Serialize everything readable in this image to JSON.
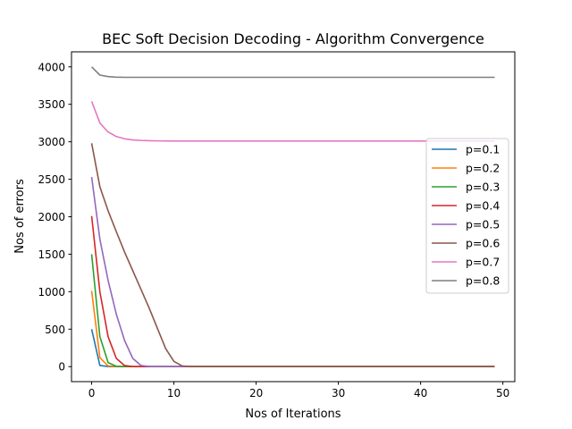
{
  "chart_data": {
    "type": "line",
    "title": "BEC Soft Decision Decoding - Algorithm Convergence",
    "xlabel": "Nos of Iterations",
    "ylabel": "Nos of errors",
    "xlim": [
      -2.45,
      51.45
    ],
    "ylim": [
      -200,
      4200
    ],
    "xticks": [
      0,
      10,
      20,
      30,
      40,
      50
    ],
    "yticks": [
      0,
      500,
      1000,
      1500,
      2000,
      2500,
      3000,
      3500,
      4000
    ],
    "grid": false,
    "legend_position": "center-right",
    "x": [
      0,
      1,
      2,
      3,
      4,
      5,
      6,
      7,
      8,
      9,
      10,
      11,
      12,
      13,
      14,
      15,
      16,
      17,
      18,
      19,
      20,
      21,
      22,
      23,
      24,
      25,
      26,
      27,
      28,
      29,
      30,
      31,
      32,
      33,
      34,
      35,
      36,
      37,
      38,
      39,
      40,
      41,
      42,
      43,
      44,
      45,
      46,
      47,
      48,
      49
    ],
    "series": [
      {
        "name": "p=0.1",
        "color": "#1f77b4",
        "values": [
          500,
          15,
          2,
          0,
          0,
          0,
          0,
          0,
          0,
          0,
          0,
          0,
          0,
          0,
          0,
          0,
          0,
          0,
          0,
          0,
          0,
          0,
          0,
          0,
          0,
          0,
          0,
          0,
          0,
          0,
          0,
          0,
          0,
          0,
          0,
          0,
          0,
          0,
          0,
          0,
          0,
          0,
          0,
          0,
          0,
          0,
          0,
          0,
          0,
          0
        ]
      },
      {
        "name": "p=0.2",
        "color": "#ff7f0e",
        "values": [
          1010,
          120,
          10,
          1,
          0,
          0,
          0,
          0,
          0,
          0,
          0,
          0,
          0,
          0,
          0,
          0,
          0,
          0,
          0,
          0,
          0,
          0,
          0,
          0,
          0,
          0,
          0,
          0,
          0,
          0,
          0,
          0,
          0,
          0,
          0,
          0,
          0,
          0,
          0,
          0,
          0,
          0,
          0,
          0,
          0,
          0,
          0,
          0,
          0,
          0
        ]
      },
      {
        "name": "p=0.3",
        "color": "#2ca02c",
        "values": [
          1500,
          400,
          55,
          5,
          0,
          0,
          0,
          0,
          0,
          0,
          0,
          0,
          0,
          0,
          0,
          0,
          0,
          0,
          0,
          0,
          0,
          0,
          0,
          0,
          0,
          0,
          0,
          0,
          0,
          0,
          0,
          0,
          0,
          0,
          0,
          0,
          0,
          0,
          0,
          0,
          0,
          0,
          0,
          0,
          0,
          0,
          0,
          0,
          0,
          0
        ]
      },
      {
        "name": "p=0.4",
        "color": "#d62728",
        "values": [
          2010,
          1000,
          400,
          110,
          15,
          1,
          0,
          0,
          0,
          0,
          0,
          0,
          0,
          0,
          0,
          0,
          0,
          0,
          0,
          0,
          0,
          0,
          0,
          0,
          0,
          0,
          0,
          0,
          0,
          0,
          0,
          0,
          0,
          0,
          0,
          0,
          0,
          0,
          0,
          0,
          0,
          0,
          0,
          0,
          0,
          0,
          0,
          0,
          0,
          0
        ]
      },
      {
        "name": "p=0.5",
        "color": "#9467bd",
        "values": [
          2530,
          1700,
          1150,
          700,
          350,
          110,
          15,
          1,
          0,
          0,
          0,
          0,
          0,
          0,
          0,
          0,
          0,
          0,
          0,
          0,
          0,
          0,
          0,
          0,
          0,
          0,
          0,
          0,
          0,
          0,
          0,
          0,
          0,
          0,
          0,
          0,
          0,
          0,
          0,
          0,
          0,
          0,
          0,
          0,
          0,
          0,
          0,
          0,
          0,
          0
        ]
      },
      {
        "name": "p=0.6",
        "color": "#8c564b",
        "values": [
          2980,
          2400,
          2080,
          1800,
          1530,
          1280,
          1030,
          780,
          510,
          240,
          70,
          10,
          1,
          0,
          0,
          0,
          0,
          0,
          0,
          0,
          0,
          0,
          0,
          0,
          0,
          0,
          0,
          0,
          0,
          0,
          0,
          0,
          0,
          0,
          0,
          0,
          0,
          0,
          0,
          0,
          0,
          0,
          0,
          0,
          0,
          0,
          0,
          0,
          0,
          0
        ]
      },
      {
        "name": "p=0.7",
        "color": "#e377c2",
        "values": [
          3540,
          3250,
          3130,
          3070,
          3040,
          3025,
          3018,
          3014,
          3012,
          3011,
          3010,
          3010,
          3010,
          3010,
          3010,
          3010,
          3010,
          3010,
          3010,
          3010,
          3010,
          3010,
          3010,
          3010,
          3010,
          3010,
          3010,
          3010,
          3010,
          3010,
          3010,
          3010,
          3010,
          3010,
          3010,
          3010,
          3010,
          3010,
          3010,
          3010,
          3010,
          3010,
          3010,
          3010,
          3010,
          3010,
          3010,
          3010,
          3010,
          3010
        ]
      },
      {
        "name": "p=0.8",
        "color": "#7f7f7f",
        "values": [
          4000,
          3890,
          3870,
          3862,
          3860,
          3860,
          3860,
          3860,
          3860,
          3860,
          3860,
          3860,
          3860,
          3860,
          3860,
          3860,
          3860,
          3860,
          3860,
          3860,
          3860,
          3860,
          3860,
          3860,
          3860,
          3860,
          3860,
          3860,
          3860,
          3860,
          3860,
          3860,
          3860,
          3860,
          3860,
          3860,
          3860,
          3860,
          3860,
          3860,
          3860,
          3860,
          3860,
          3860,
          3860,
          3860,
          3860,
          3860,
          3860,
          3860
        ]
      }
    ]
  }
}
